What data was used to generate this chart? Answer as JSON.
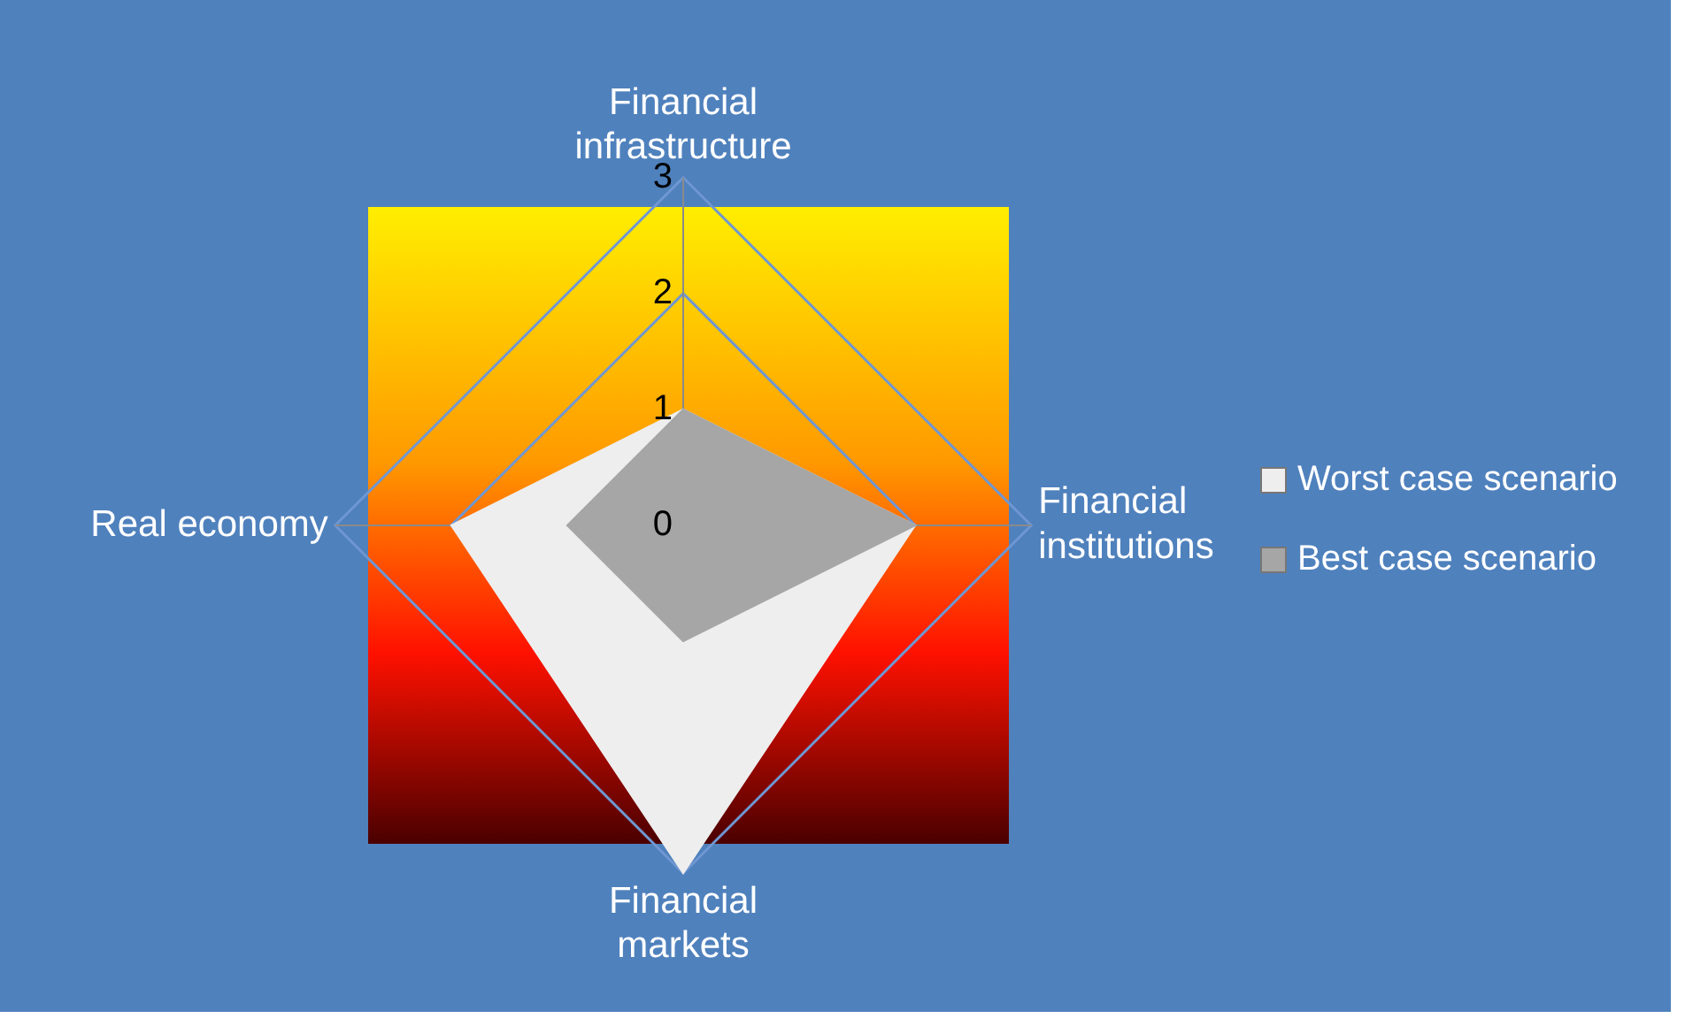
{
  "chart_data": {
    "type": "radar",
    "categories": [
      "Financial infrastructure",
      "Financial institutions",
      "Financial markets",
      "Real economy"
    ],
    "series": [
      {
        "name": "Worst case scenario",
        "color": "#eeeeee",
        "values": [
          1,
          2,
          3,
          2
        ]
      },
      {
        "name": "Best case scenario",
        "color": "#a6a6a6",
        "values": [
          1,
          2,
          1,
          1
        ]
      }
    ],
    "ylim": [
      0,
      3
    ],
    "yticks": [
      0,
      1,
      2,
      3
    ],
    "grid": true,
    "legend": "right",
    "marker": "none"
  }
}
